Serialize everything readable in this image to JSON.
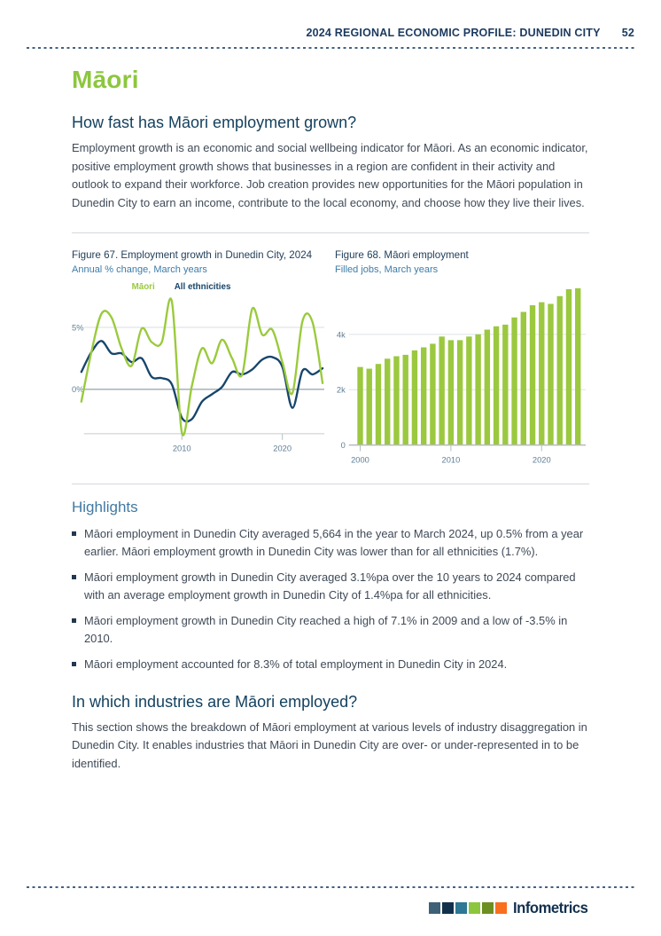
{
  "header": {
    "title": "2024 REGIONAL ECONOMIC PROFILE: DUNEDIN CITY",
    "page_number": "52"
  },
  "page_title": "Māori",
  "section_growth": {
    "heading": "How fast has Māori employment grown?",
    "body": "Employment growth is an economic and social wellbeing indicator for Māori. As an economic indicator, positive employment growth shows that businesses in a region are confident in their activity and outlook to expand their workforce. Job creation provides new opportunities for the Māori population in Dunedin City to earn an income, contribute to the local economy, and choose how they live their lives."
  },
  "highlights": {
    "heading": "Highlights",
    "items": [
      "Māori employment in Dunedin City averaged 5,664 in the year to March 2024, up 0.5% from a year earlier. Māori employment growth in Dunedin City was lower than for all ethnicities (1.7%).",
      "Māori employment growth in Dunedin City averaged 3.1%pa over the 10 years to 2024 compared with an average employment growth in Dunedin City of 1.4%pa for all ethnicities.",
      "Māori employment growth in Dunedin City reached a high of 7.1% in 2009 and a low of -3.5% in 2010.",
      "Māori employment accounted for 8.3% of total employment in Dunedin City in 2024."
    ]
  },
  "section_industries": {
    "heading": "In which industries are Māori employed?",
    "body": "This section shows the breakdown of Māori employment at various levels of industry disaggregation in Dunedin City. It enables industries that Māori in Dunedin City are over- or under-represented in to be identified."
  },
  "footer": {
    "brand": "Infometrics",
    "logo_colors": [
      "#3e6177",
      "#12304c",
      "#2e7795",
      "#8cc63e",
      "#6d8f22",
      "#f96f1e"
    ]
  },
  "colors": {
    "accent_green": "#8dc63f",
    "heading_navy": "#14415f",
    "heading_blue": "#4179a3",
    "axis_label": "#5e7e95"
  },
  "chart_data": [
    {
      "type": "line",
      "title": "Figure 67. Employment growth in Dunedin City, 2024",
      "subtitle": "Annual % change, March years",
      "x": [
        2000,
        2001,
        2002,
        2003,
        2004,
        2005,
        2006,
        2007,
        2008,
        2009,
        2010,
        2011,
        2012,
        2013,
        2014,
        2015,
        2016,
        2017,
        2018,
        2019,
        2020,
        2021,
        2022,
        2023,
        2024
      ],
      "series": [
        {
          "name": "Māori",
          "color": "#9aca3c",
          "values": [
            -1.0,
            3.0,
            6.1,
            5.8,
            3.3,
            1.9,
            4.9,
            3.8,
            3.8,
            7.1,
            -3.5,
            0.3,
            3.3,
            2.1,
            4.0,
            2.5,
            1.2,
            6.5,
            4.4,
            4.8,
            2.2,
            -0.3,
            5.5,
            5.4,
            0.5
          ]
        },
        {
          "name": "All ethnicities",
          "color": "#17456b",
          "values": [
            1.4,
            3.0,
            3.9,
            2.9,
            2.9,
            2.2,
            2.5,
            1.0,
            0.9,
            0.4,
            -2.3,
            -2.4,
            -1.0,
            -0.4,
            0.2,
            1.4,
            1.2,
            1.6,
            2.4,
            2.6,
            1.8,
            -1.5,
            1.5,
            1.2,
            1.7
          ]
        }
      ],
      "yticks": [
        {
          "value": 5,
          "label": "5%"
        },
        {
          "value": 0,
          "label": "0%"
        }
      ],
      "xticks": [
        2010,
        2020
      ],
      "ylim": [
        -3.7,
        7.6
      ],
      "legend_position": "top",
      "grid": true
    },
    {
      "type": "bar",
      "title": "Figure 68. Māori employment",
      "subtitle": "Filled jobs, March years",
      "bar_color": "#9bc83f",
      "categories": [
        2000,
        2001,
        2002,
        2003,
        2004,
        2005,
        2006,
        2007,
        2008,
        2009,
        2010,
        2011,
        2012,
        2013,
        2014,
        2015,
        2016,
        2017,
        2018,
        2019,
        2020,
        2021,
        2022,
        2023,
        2024
      ],
      "values": [
        2820,
        2760,
        2930,
        3120,
        3210,
        3260,
        3420,
        3530,
        3660,
        3920,
        3790,
        3790,
        3920,
        4000,
        4170,
        4290,
        4350,
        4610,
        4810,
        5050,
        5160,
        5100,
        5380,
        5630,
        5664
      ],
      "yticks": [
        {
          "value": 0,
          "label": "0"
        },
        {
          "value": 2000,
          "label": "2k"
        },
        {
          "value": 4000,
          "label": "4k"
        }
      ],
      "xticks": [
        2000,
        2010,
        2020
      ],
      "ylim": [
        0,
        5800
      ],
      "grid": true
    }
  ]
}
